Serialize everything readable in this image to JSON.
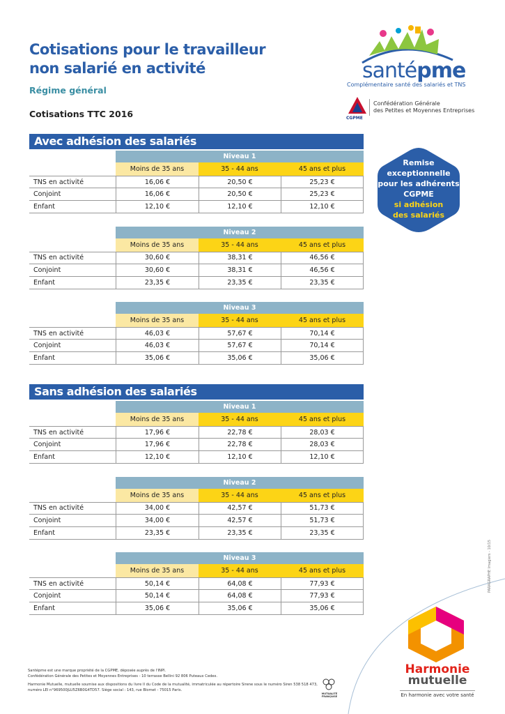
{
  "header": {
    "title_lines": [
      "Cotisations pour le travailleur",
      "non salarié en activité"
    ],
    "subtitle": "Régime général",
    "year_label": "Cotisations TTC 2016"
  },
  "logo": {
    "brand_a": "santé",
    "brand_b": "pme",
    "tagline": "Complémentaire santé des salariés et TNS",
    "cgpme": "CGPME",
    "cgpme_lines": [
      "Confédération Générale",
      "des Petites et Moyennes Entreprises"
    ]
  },
  "badge": {
    "lines": [
      "Remise",
      "exceptionnelle",
      "pour les adhérents",
      "CGPME"
    ],
    "highlight_lines": [
      "si adhésion",
      "des salariés"
    ]
  },
  "columns": [
    "Moins de 35 ans",
    "35 - 44 ans",
    "45 ans et plus"
  ],
  "sections": [
    {
      "title": "Avec adhésion des salariés",
      "tables": [
        {
          "level": "Niveau 1",
          "rows": [
            {
              "label": "TNS en activité",
              "values": [
                "16,06 €",
                "20,50 €",
                "25,23 €"
              ]
            },
            {
              "label": "Conjoint",
              "values": [
                "16,06 €",
                "20,50 €",
                "25,23 €"
              ]
            },
            {
              "label": "Enfant",
              "values": [
                "12,10 €",
                "12,10 €",
                "12,10 €"
              ]
            }
          ]
        },
        {
          "level": "Niveau 2",
          "rows": [
            {
              "label": "TNS en activité",
              "values": [
                "30,60 €",
                "38,31 €",
                "46,56 €"
              ]
            },
            {
              "label": "Conjoint",
              "values": [
                "30,60 €",
                "38,31 €",
                "46,56 €"
              ]
            },
            {
              "label": "Enfant",
              "values": [
                "23,35 €",
                "23,35 €",
                "23,35 €"
              ]
            }
          ]
        },
        {
          "level": "Niveau 3",
          "rows": [
            {
              "label": "TNS en activité",
              "values": [
                "46,03 €",
                "57,67 €",
                "70,14 €"
              ]
            },
            {
              "label": "Conjoint",
              "values": [
                "46,03 €",
                "57,67 €",
                "70,14 €"
              ]
            },
            {
              "label": "Enfant",
              "values": [
                "35,06 €",
                "35,06 €",
                "35,06 €"
              ]
            }
          ]
        }
      ]
    },
    {
      "title": "Sans adhésion des salariés",
      "tables": [
        {
          "level": "Niveau 1",
          "rows": [
            {
              "label": "TNS en activité",
              "values": [
                "17,96 €",
                "22,78 €",
                "28,03 €"
              ]
            },
            {
              "label": "Conjoint",
              "values": [
                "17,96 €",
                "22,78 €",
                "28,03 €"
              ]
            },
            {
              "label": "Enfant",
              "values": [
                "12,10 €",
                "12,10 €",
                "12,10 €"
              ]
            }
          ]
        },
        {
          "level": "Niveau 2",
          "rows": [
            {
              "label": "TNS en activité",
              "values": [
                "34,00 €",
                "42,57 €",
                "51,73 €"
              ]
            },
            {
              "label": "Conjoint",
              "values": [
                "34,00 €",
                "42,57 €",
                "51,73 €"
              ]
            },
            {
              "label": "Enfant",
              "values": [
                "23,35 €",
                "23,35 €",
                "23,35 €"
              ]
            }
          ]
        },
        {
          "level": "Niveau 3",
          "rows": [
            {
              "label": "TNS en activité",
              "values": [
                "50,14 €",
                "64,08 €",
                "77,93 €"
              ]
            },
            {
              "label": "Conjoint",
              "values": [
                "50,14 €",
                "64,08 €",
                "77,93 €"
              ]
            },
            {
              "label": "Enfant",
              "values": [
                "35,06 €",
                "35,06 €",
                "35,06 €"
              ]
            }
          ]
        }
      ]
    }
  ],
  "footer": {
    "lines": [
      "Santépme est une marque propriété de la CGPME, déposée auprès de l'INPI.",
      "Confédération Générale des Petites et Moyennes Entreprises - 10 terrasse Bellini 92 806 Puteaux Cedex.",
      "Harmonie Mutuelle, mutuelle soumise aux dispositions du livre II du Code de la mutualité, immatriculée au répertoire Sirene sous le numéro Siren 538 518 473,",
      "numéro LEI n°969500JLU5Z6B0G4TD57. Siège social : 143, rue Blomet - 75015 Paris."
    ],
    "side_note": "PARAGRAPHE Imagiers - 10/15",
    "mutualite": "MUTUALITÉ FRANÇAISE",
    "harmonie": "Harmonie",
    "mutuelle": "mutuelle",
    "harmonie_tagline": "En harmonie avec votre santé"
  }
}
